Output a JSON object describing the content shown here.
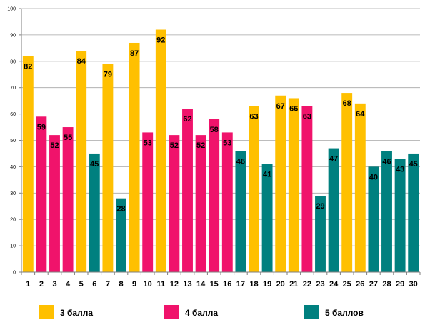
{
  "chart_data": {
    "type": "bar",
    "categories": [
      "1",
      "2",
      "3",
      "4",
      "5",
      "6",
      "7",
      "8",
      "9",
      "10",
      "11",
      "12",
      "13",
      "14",
      "15",
      "16",
      "17",
      "18",
      "19",
      "20",
      "21",
      "22",
      "23",
      "24",
      "25",
      "26",
      "27",
      "28",
      "29",
      "30"
    ],
    "values": [
      82,
      59,
      52,
      55,
      84,
      45,
      79,
      28,
      87,
      53,
      92,
      52,
      62,
      52,
      58,
      53,
      46,
      63,
      41,
      67,
      66,
      63,
      29,
      47,
      68,
      64,
      40,
      46,
      43,
      45
    ],
    "groups": [
      0,
      1,
      1,
      1,
      0,
      2,
      0,
      2,
      0,
      1,
      0,
      1,
      1,
      1,
      1,
      1,
      2,
      0,
      2,
      0,
      0,
      1,
      2,
      2,
      0,
      0,
      2,
      2,
      2,
      2
    ],
    "series": [
      {
        "name": "3 балла",
        "color": "#FFC000"
      },
      {
        "name": "4 балла",
        "color": "#F0136B"
      },
      {
        "name": "5 баллов",
        "color": "#00807F"
      }
    ],
    "ylim": [
      0,
      100
    ],
    "yticks": [
      0,
      10,
      20,
      30,
      40,
      50,
      60,
      70,
      80,
      90,
      100
    ],
    "grid": true,
    "legend_position": "bottom",
    "data_labels": true
  }
}
